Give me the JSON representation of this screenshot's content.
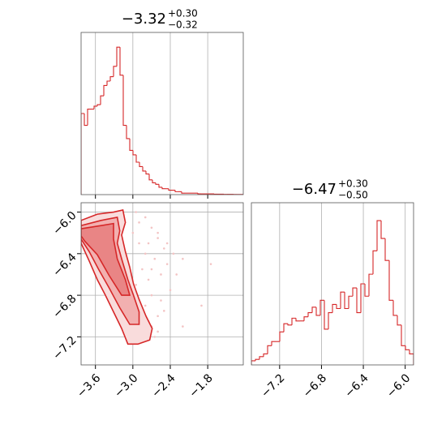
{
  "chart_data": [
    {
      "type": "histogram",
      "title": "−3.32",
      "title_upper": "+0.30",
      "title_lower": "−0.32",
      "color": "#d62728",
      "bins": [
        -3.83,
        -3.778,
        -3.726,
        -3.674,
        -3.622,
        -3.57,
        -3.518,
        -3.466,
        -3.414,
        -3.362,
        -3.31,
        -3.258,
        -3.206,
        -3.154,
        -3.102,
        -3.05,
        -2.998,
        -2.946,
        -2.894,
        -2.842,
        -2.79,
        -2.738,
        -2.686,
        -2.634,
        -2.582,
        -2.53,
        -2.478,
        -2.426,
        -2.374,
        -2.322,
        -2.27,
        -2.218,
        -2.166,
        -2.114,
        -2.062,
        -2.01,
        -1.958,
        -1.906,
        -1.854,
        -1.802,
        -1.75,
        -1.698,
        -1.646,
        -1.594,
        -1.542,
        -1.49,
        -1.438,
        -1.386,
        -1.334,
        -1.282,
        -1.23
      ],
      "values": [
        55,
        47,
        58,
        58,
        60,
        61,
        67,
        74,
        77,
        80,
        87,
        100,
        81,
        47,
        38,
        30,
        27,
        22,
        19,
        16,
        14,
        10,
        8,
        7,
        5,
        4,
        4,
        3,
        3,
        2,
        2,
        1,
        1,
        1,
        1,
        1,
        0.5,
        0.5,
        0.5,
        0.5,
        0.5,
        0.3,
        0.3,
        0.3,
        0.2,
        0.2,
        0.2,
        0.1,
        0.1,
        0.1
      ],
      "xlim": [
        -3.83,
        -1.23
      ],
      "xticks": [
        -3.6,
        -3.0,
        -2.4,
        -1.8
      ],
      "ylim": [
        0,
        110
      ],
      "grid": true
    },
    {
      "type": "contour-scatter",
      "color": "#d62728",
      "point_color": "#f3c4c4",
      "contour_fills": [
        "#f9dcdc",
        "#f2b0b0",
        "#e98585"
      ],
      "x": [
        -2.95,
        -2.9,
        -2.8,
        -2.7,
        -2.75,
        -2.6,
        -2.65,
        -2.5,
        -2.85,
        -2.95,
        -2.55,
        -2.45,
        -2.7,
        -2.8,
        -2.6,
        -3.0,
        -2.9,
        -2.4,
        -2.35,
        -2.7,
        -2.5,
        -2.85,
        -2.75,
        -2.6,
        -2.95,
        -2.3,
        -1.75,
        -1.9,
        -2.2,
        -2.65,
        -2.8,
        -2.9,
        -3.0,
        -2.55,
        -2.75,
        -2.45,
        -2.85,
        -2.7,
        -2.6,
        -2.2
      ],
      "y": [
        -6.0,
        -6.1,
        -6.05,
        -6.15,
        -6.3,
        -6.2,
        -6.45,
        -6.35,
        -6.55,
        -6.7,
        -6.6,
        -6.5,
        -6.8,
        -6.9,
        -7.0,
        -7.2,
        -7.25,
        -6.75,
        -6.4,
        -7.1,
        -6.95,
        -7.15,
        -6.65,
        -6.25,
        -6.85,
        -6.6,
        -6.5,
        -6.9,
        -7.1,
        -7.2,
        -6.4,
        -6.3,
        -6.2,
        -6.85,
        -7.05,
        -6.3,
        -6.95,
        -6.55,
        -7.15,
        -6.45
      ],
      "contours": [
        {
          "x": [
            -3.83,
            -3.57,
            -3.31,
            -3.16,
            -3.12,
            -3.18,
            -3.12,
            -3.05,
            -2.99,
            -2.9,
            -2.79,
            -2.69,
            -2.73,
            -2.92,
            -3.08,
            -3.18,
            -3.31,
            -3.44,
            -3.57,
            -3.7,
            -3.83
          ],
          "y": [
            -6.08,
            -6.02,
            -6.0,
            -5.98,
            -6.1,
            -6.22,
            -6.38,
            -6.53,
            -6.69,
            -6.84,
            -7.0,
            -7.12,
            -7.23,
            -7.27,
            -7.27,
            -7.12,
            -6.96,
            -6.8,
            -6.65,
            -6.47,
            -6.3
          ]
        },
        {
          "x": [
            -3.83,
            -3.51,
            -3.25,
            -3.21,
            -3.25,
            -3.18,
            -3.08,
            -2.99,
            -2.9,
            -2.9,
            -3.05,
            -3.21,
            -3.38,
            -3.55,
            -3.7,
            -3.83
          ],
          "y": [
            -6.13,
            -6.08,
            -6.05,
            -6.18,
            -6.3,
            -6.45,
            -6.65,
            -6.8,
            -6.96,
            -7.08,
            -7.08,
            -6.92,
            -6.73,
            -6.55,
            -6.38,
            -6.26
          ]
        },
        {
          "x": [
            -3.83,
            -3.51,
            -3.31,
            -3.31,
            -3.25,
            -3.12,
            -3.05,
            -3.18,
            -3.38,
            -3.57,
            -3.77,
            -3.83
          ],
          "y": [
            -6.16,
            -6.13,
            -6.11,
            -6.26,
            -6.45,
            -6.65,
            -6.8,
            -6.8,
            -6.61,
            -6.41,
            -6.28,
            -6.23
          ]
        }
      ],
      "xlim": [
        -3.83,
        -1.23
      ],
      "xticks": [
        {
          "value": -3.6,
          "label": "−3.6"
        },
        {
          "value": -3.0,
          "label": "−3.0"
        },
        {
          "value": -2.4,
          "label": "−2.4"
        },
        {
          "value": -1.8,
          "label": "−1.8"
        }
      ],
      "ylim": [
        -7.47,
        -5.91
      ],
      "yticks": [
        {
          "value": -6.0,
          "label": "−6.0"
        },
        {
          "value": -6.4,
          "label": "−6.4"
        },
        {
          "value": -6.8,
          "label": "−6.8"
        },
        {
          "value": -7.2,
          "label": "−7.2"
        }
      ],
      "grid": true
    },
    {
      "type": "histogram",
      "title": "−6.47",
      "title_upper": "+0.30",
      "title_lower": "−0.50",
      "color": "#d62728",
      "bins": [
        -7.47,
        -7.43125,
        -7.3925,
        -7.35375,
        -7.315,
        -7.27625,
        -7.2375,
        -7.19875,
        -7.16,
        -7.12125,
        -7.0825,
        -7.04375,
        -7.005,
        -6.96625,
        -6.9275,
        -6.88875,
        -6.85,
        -6.81125,
        -6.7725,
        -6.73375,
        -6.695,
        -6.65625,
        -6.6175,
        -6.57875,
        -6.54,
        -6.50125,
        -6.4625,
        -6.42375,
        -6.385,
        -6.34625,
        -6.3075,
        -6.26875,
        -6.23,
        -6.19125,
        -6.1525,
        -6.11375,
        -6.075,
        -6.03625,
        -5.9975,
        -5.95875,
        -5.92
      ],
      "values": [
        3,
        4,
        6,
        8,
        14,
        17,
        17,
        24,
        30,
        29,
        34,
        32,
        32,
        35,
        38,
        42,
        36,
        47,
        26,
        38,
        44,
        41,
        53,
        41,
        50,
        56,
        38,
        59,
        50,
        66,
        83,
        105,
        92,
        76,
        47,
        36,
        29,
        14,
        11,
        8
      ],
      "xlim": [
        -7.47,
        -5.92
      ],
      "xticks": [
        {
          "value": -7.2,
          "label": "−7.2"
        },
        {
          "value": -6.8,
          "label": "−6.8"
        },
        {
          "value": -6.4,
          "label": "−6.4"
        },
        {
          "value": -6.0,
          "label": "−6.0"
        }
      ],
      "ylim": [
        0,
        118
      ],
      "grid": true
    }
  ]
}
